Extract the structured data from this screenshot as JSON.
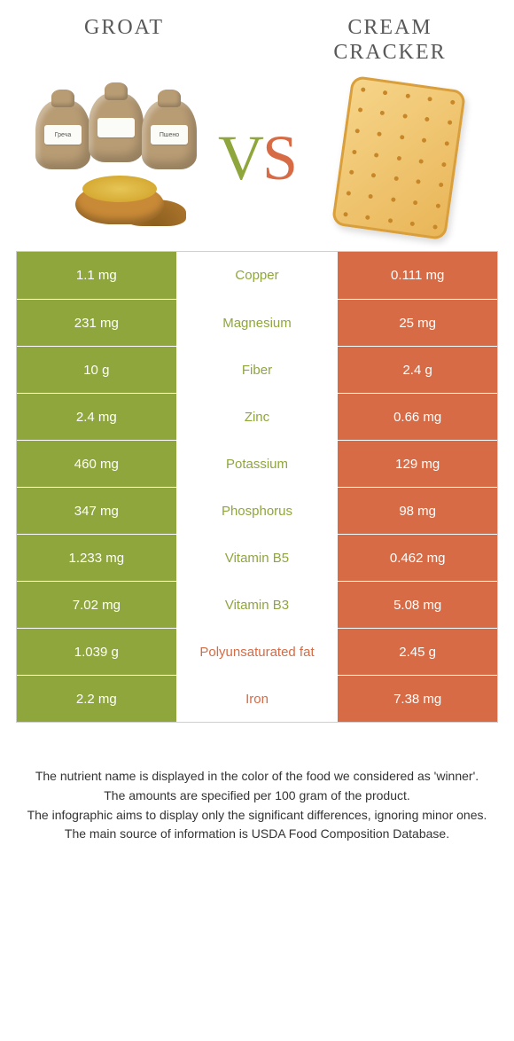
{
  "colors": {
    "groat": "#8fa63c",
    "cracker": "#d76b45",
    "label_text": "#585858"
  },
  "titles": {
    "left": "Groat",
    "right": "Cream Cracker"
  },
  "vs": {
    "v": "V",
    "s": "S"
  },
  "rows": [
    {
      "label": "Copper",
      "left": "1.1 mg",
      "right": "0.111 mg",
      "winner": "left"
    },
    {
      "label": "Magnesium",
      "left": "231 mg",
      "right": "25 mg",
      "winner": "left"
    },
    {
      "label": "Fiber",
      "left": "10 g",
      "right": "2.4 g",
      "winner": "left"
    },
    {
      "label": "Zinc",
      "left": "2.4 mg",
      "right": "0.66 mg",
      "winner": "left"
    },
    {
      "label": "Potassium",
      "left": "460 mg",
      "right": "129 mg",
      "winner": "left"
    },
    {
      "label": "Phosphorus",
      "left": "347 mg",
      "right": "98 mg",
      "winner": "left"
    },
    {
      "label": "Vitamin B5",
      "left": "1.233 mg",
      "right": "0.462 mg",
      "winner": "left"
    },
    {
      "label": "Vitamin B3",
      "left": "7.02 mg",
      "right": "5.08 mg",
      "winner": "left"
    },
    {
      "label": "Polyunsaturated fat",
      "left": "1.039 g",
      "right": "2.45 g",
      "winner": "right"
    },
    {
      "label": "Iron",
      "left": "2.2 mg",
      "right": "7.38 mg",
      "winner": "right"
    }
  ],
  "footer": [
    "The nutrient name is displayed in the color of the food we considered as 'winner'.",
    "The amounts are specified per 100 gram of the product.",
    "The infographic aims to display only the significant differences, ignoring minor ones.",
    "The main source of information is USDA Food Composition Database."
  ],
  "cracker_perforations": {
    "cols": 5,
    "rows": 7,
    "margin": 14,
    "jitter": 0
  }
}
